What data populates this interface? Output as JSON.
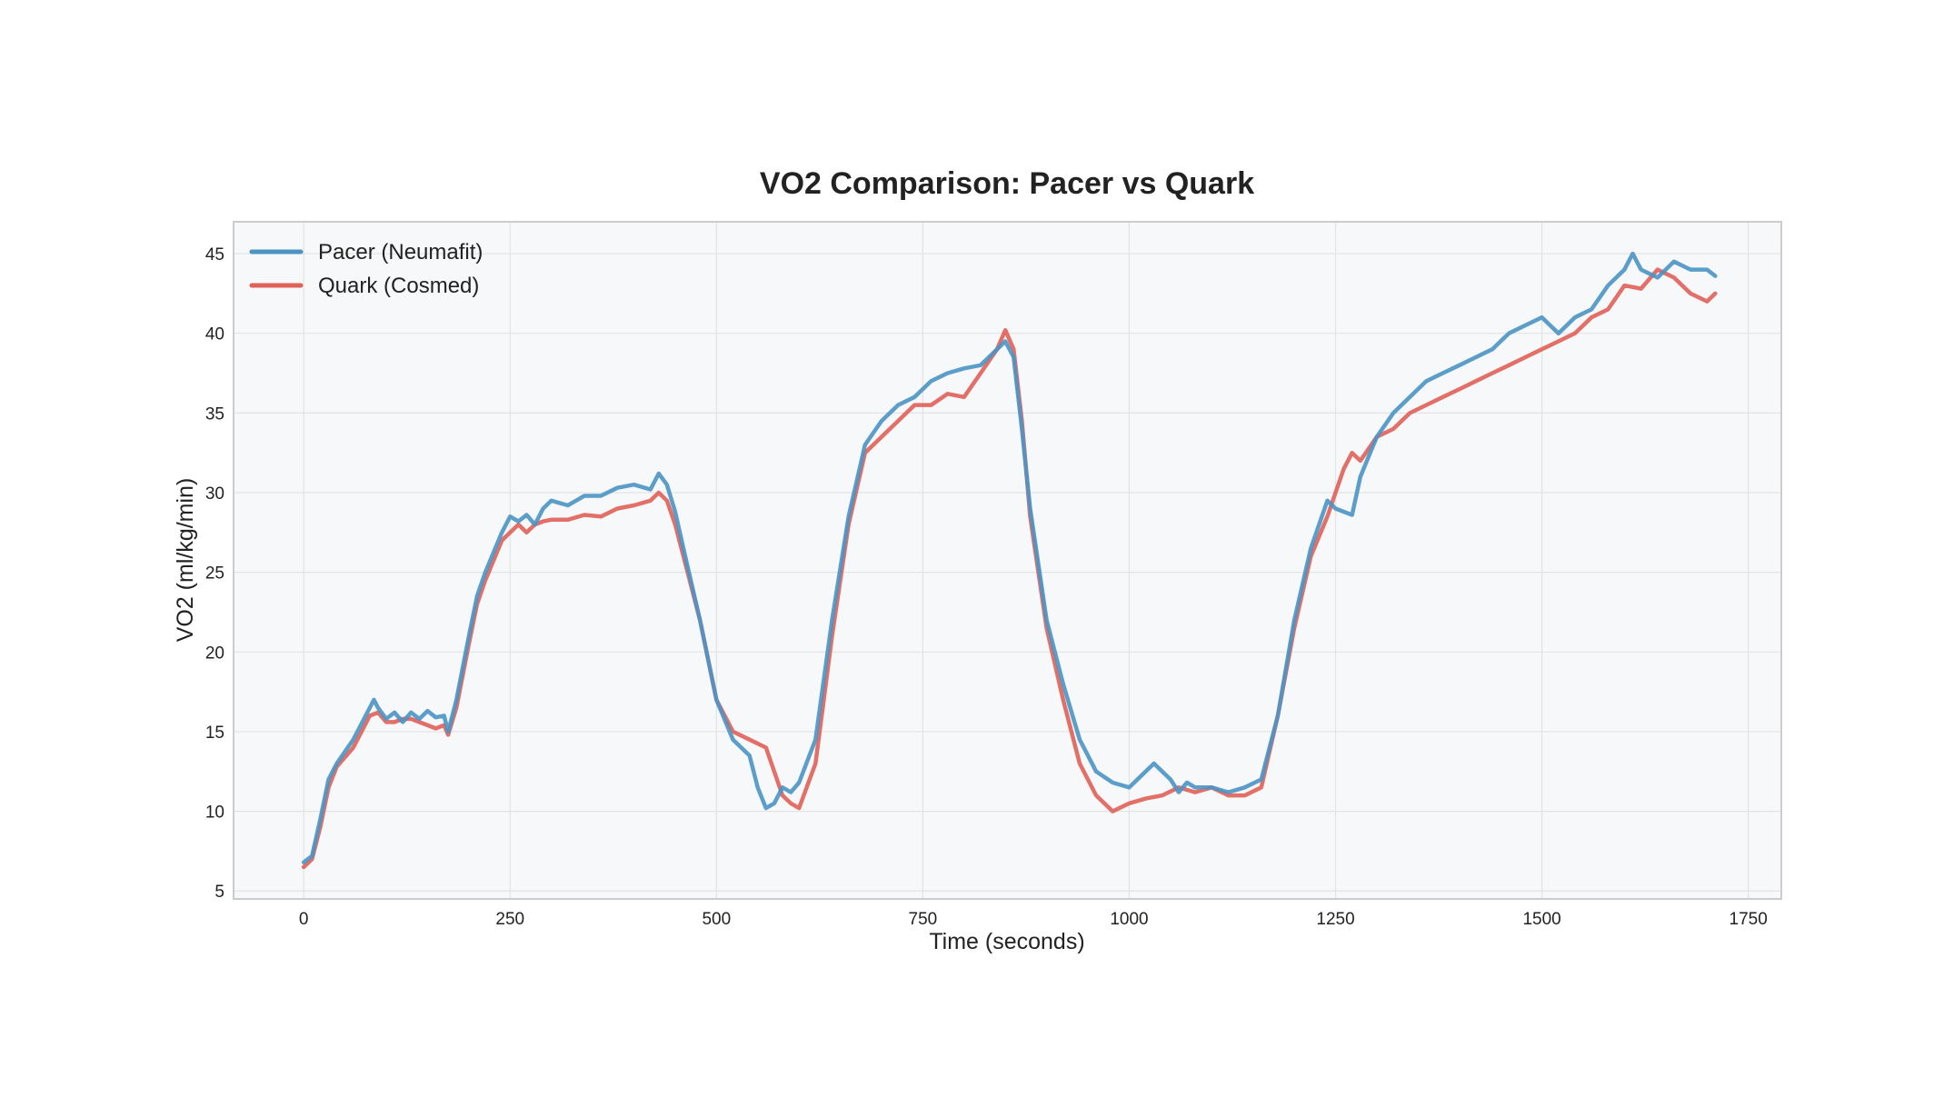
{
  "chart_data": {
    "type": "line",
    "title": "VO2 Comparison: Pacer vs Quark",
    "xlabel": "Time (seconds)",
    "ylabel": "VO2 (ml/kg/min)",
    "xlim": [
      -85,
      1790
    ],
    "ylim": [
      4.5,
      47
    ],
    "xticks": [
      0,
      250,
      500,
      750,
      1000,
      1250,
      1500,
      1750
    ],
    "yticks": [
      5,
      10,
      15,
      20,
      25,
      30,
      35,
      40,
      45
    ],
    "xtick_labels": [
      "0",
      "250",
      "500",
      "750",
      "1000",
      "1250",
      "1500",
      "1750"
    ],
    "ytick_labels": [
      "5",
      "10",
      "15",
      "20",
      "25",
      "30",
      "35",
      "40",
      "45"
    ],
    "grid": true,
    "legend_position": "top-left",
    "series": [
      {
        "name": "Pacer (Neumafit)",
        "color": "#4b94c4",
        "x": [
          0,
          10,
          20,
          30,
          40,
          60,
          80,
          85,
          90,
          100,
          110,
          120,
          130,
          140,
          150,
          160,
          170,
          175,
          185,
          200,
          210,
          220,
          240,
          250,
          260,
          270,
          280,
          290,
          300,
          320,
          340,
          360,
          380,
          400,
          420,
          430,
          440,
          450,
          460,
          480,
          500,
          520,
          540,
          550,
          560,
          570,
          580,
          590,
          600,
          620,
          640,
          660,
          680,
          700,
          720,
          740,
          760,
          780,
          800,
          820,
          840,
          850,
          860,
          870,
          880,
          900,
          920,
          940,
          960,
          980,
          1000,
          1020,
          1030,
          1040,
          1050,
          1060,
          1070,
          1080,
          1100,
          1120,
          1140,
          1160,
          1180,
          1200,
          1220,
          1240,
          1250,
          1260,
          1270,
          1280,
          1300,
          1320,
          1340,
          1360,
          1380,
          1400,
          1420,
          1440,
          1460,
          1480,
          1500,
          1520,
          1540,
          1560,
          1580,
          1600,
          1610,
          1620,
          1640,
          1660,
          1680,
          1700,
          1710
        ],
        "y": [
          6.8,
          7.2,
          9.5,
          12.0,
          13.0,
          14.5,
          16.5,
          17.0,
          16.5,
          15.8,
          16.2,
          15.6,
          16.2,
          15.8,
          16.3,
          15.9,
          16.0,
          15.0,
          17.0,
          21.0,
          23.5,
          25.0,
          27.5,
          28.5,
          28.2,
          28.6,
          28.0,
          29.0,
          29.5,
          29.2,
          29.8,
          29.8,
          30.3,
          30.5,
          30.2,
          31.2,
          30.5,
          28.8,
          26.5,
          22.0,
          17.0,
          14.5,
          13.5,
          11.5,
          10.2,
          10.5,
          11.5,
          11.2,
          11.8,
          14.5,
          22.0,
          28.5,
          33.0,
          34.5,
          35.5,
          36.0,
          37.0,
          37.5,
          37.8,
          38.0,
          39.0,
          39.5,
          38.5,
          34.0,
          29.0,
          22.0,
          18.0,
          14.5,
          12.5,
          11.8,
          11.5,
          12.5,
          13.0,
          12.5,
          12.0,
          11.2,
          11.8,
          11.5,
          11.5,
          11.2,
          11.5,
          12.0,
          16.0,
          22.0,
          26.5,
          29.5,
          29.0,
          28.8,
          28.6,
          31.0,
          33.5,
          35.0,
          36.0,
          37.0,
          37.5,
          38.0,
          38.5,
          39.0,
          40.0,
          40.5,
          41.0,
          40.0,
          41.0,
          41.5,
          43.0,
          44.0,
          45.0,
          44.0,
          43.5,
          44.5,
          44.0,
          44.0,
          43.6
        ]
      },
      {
        "name": "Quark (Cosmed)",
        "color": "#e06158",
        "x": [
          0,
          10,
          20,
          30,
          40,
          60,
          80,
          90,
          100,
          110,
          120,
          130,
          140,
          160,
          170,
          175,
          185,
          200,
          210,
          220,
          240,
          250,
          260,
          270,
          280,
          290,
          300,
          320,
          340,
          360,
          380,
          400,
          420,
          430,
          440,
          450,
          460,
          480,
          500,
          520,
          540,
          560,
          570,
          580,
          590,
          600,
          620,
          640,
          660,
          680,
          700,
          720,
          740,
          760,
          780,
          800,
          820,
          840,
          850,
          860,
          870,
          880,
          900,
          920,
          940,
          960,
          980,
          1000,
          1020,
          1040,
          1060,
          1080,
          1100,
          1120,
          1140,
          1160,
          1180,
          1200,
          1220,
          1240,
          1250,
          1260,
          1270,
          1280,
          1300,
          1320,
          1340,
          1360,
          1380,
          1400,
          1420,
          1440,
          1460,
          1480,
          1500,
          1520,
          1540,
          1560,
          1580,
          1600,
          1620,
          1640,
          1660,
          1680,
          1700,
          1710
        ],
        "y": [
          6.5,
          7.0,
          9.0,
          11.5,
          12.8,
          14.0,
          16.0,
          16.2,
          15.6,
          15.6,
          15.8,
          15.8,
          15.6,
          15.2,
          15.4,
          14.8,
          16.5,
          20.5,
          23.0,
          24.5,
          27.0,
          27.5,
          28.0,
          27.5,
          28.0,
          28.2,
          28.3,
          28.3,
          28.6,
          28.5,
          29.0,
          29.2,
          29.5,
          30.0,
          29.5,
          28.0,
          26.0,
          22.0,
          17.0,
          15.0,
          14.5,
          14.0,
          12.5,
          11.0,
          10.5,
          10.2,
          13.0,
          21.0,
          28.0,
          32.5,
          33.5,
          34.5,
          35.5,
          35.5,
          36.2,
          36.0,
          37.5,
          39.0,
          40.2,
          39.0,
          34.5,
          28.5,
          21.5,
          17.0,
          13.0,
          11.0,
          10.0,
          10.5,
          10.8,
          11.0,
          11.5,
          11.2,
          11.5,
          11.0,
          11.0,
          11.5,
          16.0,
          21.5,
          26.0,
          28.5,
          30.0,
          31.5,
          32.5,
          32.0,
          33.5,
          34.0,
          35.0,
          35.5,
          36.0,
          36.5,
          37.0,
          37.5,
          38.0,
          38.5,
          39.0,
          39.5,
          40.0,
          41.0,
          41.5,
          43.0,
          42.8,
          44.0,
          43.5,
          42.5,
          42.0,
          42.5
        ]
      }
    ]
  }
}
